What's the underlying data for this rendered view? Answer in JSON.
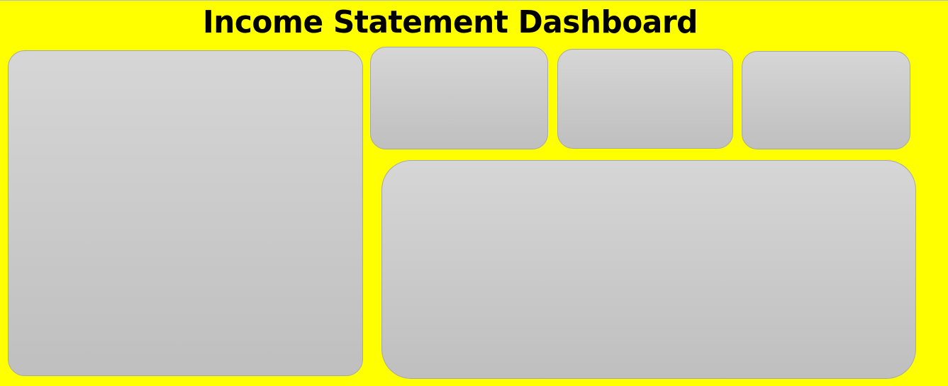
{
  "dashboard": {
    "title": "Income Statement Dashboard"
  },
  "panels": [
    {
      "id": "left-chart-panel",
      "content": ""
    },
    {
      "id": "kpi-card-1",
      "content": ""
    },
    {
      "id": "kpi-card-2",
      "content": ""
    },
    {
      "id": "kpi-card-3",
      "content": ""
    },
    {
      "id": "bottom-chart-panel",
      "content": ""
    }
  ],
  "colors": {
    "background": "#ffff00",
    "panel_top": "#d6d6d6",
    "panel_bottom": "#bfbfbf",
    "panel_border": "#a8a8a8",
    "title_text": "#000000"
  }
}
